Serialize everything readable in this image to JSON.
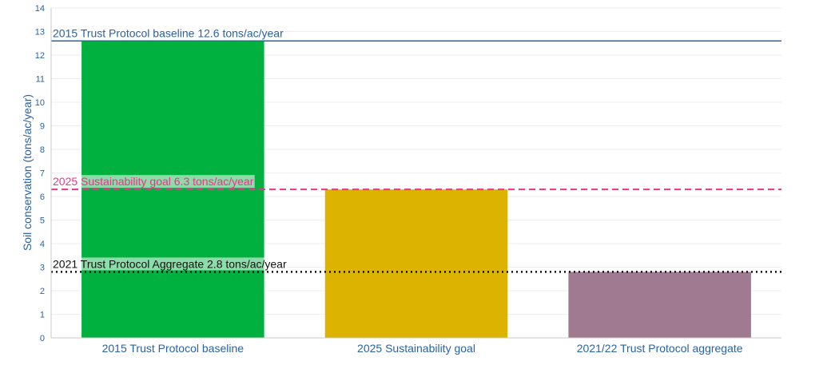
{
  "chart_data": {
    "type": "bar",
    "title": "",
    "xlabel": "",
    "ylabel": "Soil conservation (tons/ac/year)",
    "ylim": [
      0,
      14
    ],
    "yticks": [
      0,
      1,
      2,
      3,
      4,
      5,
      6,
      7,
      8,
      9,
      10,
      11,
      12,
      13,
      14
    ],
    "grid": true,
    "categories": [
      "2015 Trust Protocol baseline",
      "2025 Sustainability goal",
      "2021/22 Trust Protocol aggregate"
    ],
    "values": [
      12.6,
      6.3,
      2.8
    ],
    "bar_colors": [
      "#00b140",
      "#dbb300",
      "#a07a90"
    ],
    "reference_lines": [
      {
        "label": "2015 Trust Protocol baseline 12.6 tons/ac/year",
        "value": 12.6,
        "style": "solid",
        "color": "#2a62a4"
      },
      {
        "label": "2025 Sustainability goal 6.3 tons/ac/year",
        "value": 6.3,
        "style": "dashed",
        "color": "#f0328a"
      },
      {
        "label": "2021 Trust Protocol Aggregate 2.8 tons/ac/year",
        "value": 2.8,
        "style": "dotted",
        "color": "#111111"
      }
    ]
  }
}
